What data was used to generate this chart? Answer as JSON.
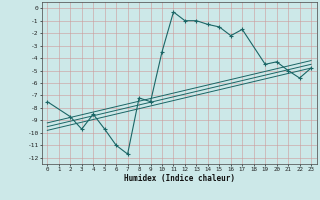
{
  "xlabel": "Humidex (Indice chaleur)",
  "bg_color": "#cce8e8",
  "grid_color": "#cc9999",
  "line_color": "#1a6666",
  "xlim": [
    -0.5,
    23.5
  ],
  "ylim": [
    -12.5,
    0.5
  ],
  "xticks": [
    0,
    1,
    2,
    3,
    4,
    5,
    6,
    7,
    8,
    9,
    10,
    11,
    12,
    13,
    14,
    15,
    16,
    17,
    18,
    19,
    20,
    21,
    22,
    23
  ],
  "yticks": [
    0,
    -1,
    -2,
    -3,
    -4,
    -5,
    -6,
    -7,
    -8,
    -9,
    -10,
    -11,
    -12
  ],
  "main_x": [
    0,
    2,
    3,
    4,
    5,
    6,
    7,
    8,
    9,
    10,
    11,
    12,
    13,
    14,
    15,
    16,
    17,
    19,
    20,
    21,
    22,
    23
  ],
  "main_y": [
    -7.5,
    -8.7,
    -9.7,
    -8.5,
    -9.7,
    -11.0,
    -11.7,
    -7.2,
    -7.5,
    -3.5,
    -0.3,
    -1.0,
    -1.0,
    -1.3,
    -1.5,
    -2.2,
    -1.7,
    -4.5,
    -4.3,
    -5.0,
    -5.6,
    -4.8
  ],
  "line1_x": [
    0,
    23
  ],
  "line1_y": [
    -9.2,
    -4.2
  ],
  "line2_x": [
    0,
    23
  ],
  "line2_y": [
    -9.5,
    -4.5
  ],
  "line3_x": [
    0,
    23
  ],
  "line3_y": [
    -9.8,
    -4.8
  ]
}
